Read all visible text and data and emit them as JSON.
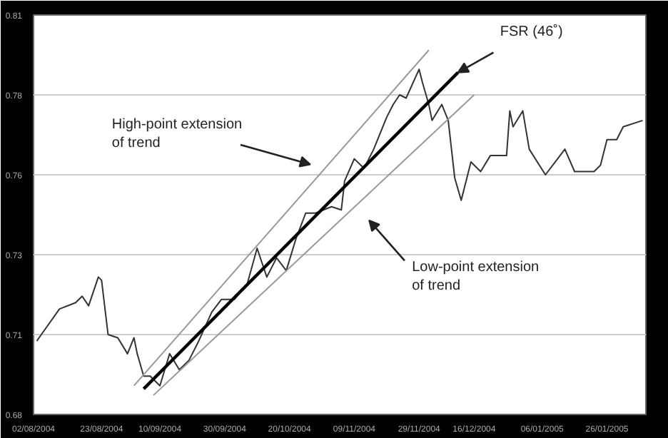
{
  "chart_data": {
    "type": "line",
    "xlim": [
      "2004-08-02",
      "2005-02-07"
    ],
    "ylim": [
      0.685,
      0.81
    ],
    "xticks": [
      {
        "value": "2004-08-02",
        "label": "02/08/2004"
      },
      {
        "value": "2004-08-23",
        "label": "23/08/2004"
      },
      {
        "value": "2004-09-10",
        "label": "10/09/2004"
      },
      {
        "value": "2004-09-30",
        "label": "30/09/2004"
      },
      {
        "value": "2004-10-20",
        "label": "20/10/2004"
      },
      {
        "value": "2004-11-09",
        "label": "09/11/2004"
      },
      {
        "value": "2004-11-29",
        "label": "29/11/2004"
      },
      {
        "value": "2004-12-16",
        "label": "16/12/2004"
      },
      {
        "value": "2005-01-06",
        "label": "06/01/2005"
      },
      {
        "value": "2005-01-26",
        "label": "26/01/2005"
      }
    ],
    "yticks": [
      {
        "value": 0.685,
        "label": "0.68"
      },
      {
        "value": 0.71,
        "label": "0.71"
      },
      {
        "value": 0.735,
        "label": "0.73"
      },
      {
        "value": 0.76,
        "label": "0.76"
      },
      {
        "value": 0.785,
        "label": "0.78"
      },
      {
        "value": 0.81,
        "label": "0.81"
      }
    ],
    "grid": "y",
    "line_style": "solid",
    "series": [
      {
        "color": "#333333",
        "x": [
          "2004-08-03",
          "2004-08-10",
          "2004-08-15",
          "2004-08-17",
          "2004-08-19",
          "2004-08-22",
          "2004-08-23",
          "2004-08-25",
          "2004-08-28",
          "2004-08-31",
          "2004-09-02",
          "2004-09-03",
          "2004-09-05",
          "2004-09-07",
          "2004-09-10",
          "2004-09-13",
          "2004-09-16",
          "2004-09-19",
          "2004-09-22",
          "2004-09-26",
          "2004-09-29",
          "2004-10-03",
          "2004-10-07",
          "2004-10-10",
          "2004-10-13",
          "2004-10-16",
          "2004-10-19",
          "2004-10-22",
          "2004-10-25",
          "2004-10-28",
          "2004-11-02",
          "2004-11-05",
          "2004-11-06",
          "2004-11-09",
          "2004-11-12",
          "2004-11-15",
          "2004-11-19",
          "2004-11-21",
          "2004-11-23",
          "2004-11-25",
          "2004-11-29",
          "2004-11-30",
          "2004-12-02",
          "2004-12-03",
          "2004-12-06",
          "2004-12-08",
          "2004-12-10",
          "2004-12-12",
          "2004-12-15",
          "2004-12-18",
          "2004-12-21",
          "2004-12-26",
          "2004-12-27",
          "2004-12-28",
          "2004-12-31",
          "2005-01-02",
          "2005-01-07",
          "2005-01-10",
          "2005-01-13",
          "2005-01-16",
          "2005-01-22",
          "2005-01-24",
          "2005-01-26",
          "2005-01-29",
          "2005-01-31",
          "2005-02-06"
        ],
        "values": [
          0.708,
          0.718,
          0.72,
          0.722,
          0.719,
          0.728,
          0.727,
          0.71,
          0.709,
          0.704,
          0.709,
          0.704,
          0.697,
          0.697,
          0.694,
          0.704,
          0.699,
          0.702,
          0.708,
          0.717,
          0.721,
          0.721,
          0.726,
          0.737,
          0.728,
          0.734,
          0.73,
          0.74,
          0.748,
          0.748,
          0.75,
          0.749,
          0.758,
          0.765,
          0.762,
          0.768,
          0.778,
          0.782,
          0.785,
          0.784,
          0.793,
          0.789,
          0.782,
          0.777,
          0.782,
          0.777,
          0.759,
          0.752,
          0.764,
          0.761,
          0.766,
          0.766,
          0.78,
          0.775,
          0.78,
          0.768,
          0.76,
          0.764,
          0.768,
          0.761,
          0.761,
          0.763,
          0.771,
          0.771,
          0.775,
          0.777
        ]
      },
      {
        "color": "#999999",
        "x": [
          "2004-09-02",
          "2004-12-02"
        ],
        "values": [
          0.694,
          0.799
        ]
      },
      {
        "color": "#999999",
        "x": [
          "2004-09-08",
          "2004-12-16"
        ],
        "values": [
          0.691,
          0.785
        ]
      },
      {
        "color": "#000000",
        "x": [
          "2004-09-05",
          "2004-12-11"
        ],
        "values": [
          0.693,
          0.792
        ]
      }
    ],
    "annotations": [
      {
        "text": "FSR (46˚)",
        "x": "2004-12-11",
        "y": 0.792
      },
      "High-point extension\nof trend",
      "Low-point extension\nof trend"
    ]
  }
}
